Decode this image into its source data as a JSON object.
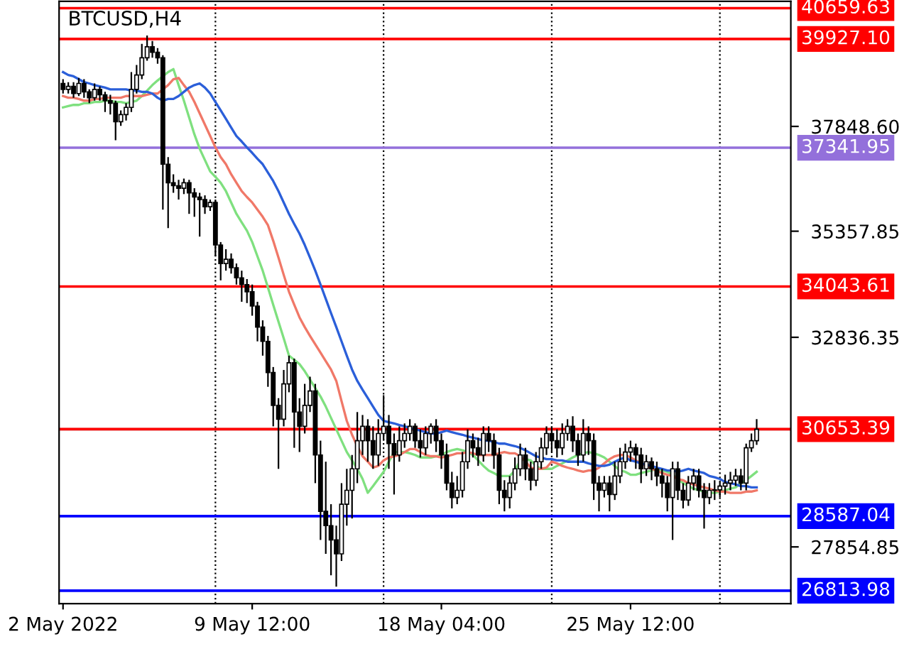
{
  "chart_data": {
    "type": "candlestick",
    "title": "BTCUSD,H4",
    "categories": [
      "2 May 2022",
      null,
      null,
      null,
      null,
      null,
      null,
      null,
      null,
      null,
      null,
      null,
      null,
      null,
      null,
      null,
      null,
      null,
      null,
      null,
      null,
      null,
      null,
      null,
      null,
      null,
      null,
      null,
      null,
      null,
      null,
      null,
      null,
      null,
      null,
      null,
      "9 May 12:00",
      null,
      null,
      null,
      null,
      null,
      null,
      null,
      null,
      null,
      null,
      null,
      null,
      null,
      null,
      null,
      null,
      null,
      null,
      null,
      null,
      null,
      null,
      null,
      null,
      null,
      null,
      null,
      null,
      null,
      null,
      null,
      null,
      null,
      null,
      null,
      "18 May 04:00",
      null,
      null,
      null,
      null,
      null,
      null,
      null,
      null,
      null,
      null,
      null,
      null,
      null,
      null,
      null,
      null,
      null,
      null,
      null,
      null,
      null,
      null,
      null,
      null,
      null,
      null,
      null,
      null,
      null,
      null,
      null,
      null,
      null,
      null,
      null,
      "25 May 12:00",
      null,
      null,
      null,
      null,
      null,
      null,
      null,
      null,
      null,
      null,
      null,
      null,
      null,
      null,
      null,
      null,
      null,
      null,
      null,
      null,
      null,
      null,
      null,
      null
    ],
    "ohlc": [
      [
        38870,
        38970,
        38630,
        38730
      ],
      [
        38730,
        38900,
        38630,
        38800
      ],
      [
        38800,
        38900,
        38530,
        38630
      ],
      [
        38630,
        39000,
        38570,
        38870
      ],
      [
        38870,
        38970,
        38530,
        38670
      ],
      [
        38670,
        38730,
        38400,
        38530
      ],
      [
        38530,
        38870,
        38460,
        38730
      ],
      [
        38730,
        38800,
        38460,
        38600
      ],
      [
        38600,
        38670,
        38190,
        38460
      ],
      [
        38460,
        38600,
        38130,
        38400
      ],
      [
        38400,
        38460,
        37520,
        37960
      ],
      [
        37960,
        38230,
        37860,
        38130
      ],
      [
        38130,
        38400,
        37990,
        38300
      ],
      [
        38300,
        39140,
        38190,
        38730
      ],
      [
        38730,
        39310,
        38630,
        39070
      ],
      [
        39070,
        39810,
        38970,
        39480
      ],
      [
        39480,
        40010,
        39410,
        39740
      ],
      [
        39740,
        39880,
        39480,
        39610
      ],
      [
        39610,
        39710,
        39340,
        39480
      ],
      [
        39480,
        39540,
        35870,
        36950
      ],
      [
        36950,
        37120,
        35430,
        36510
      ],
      [
        36510,
        36710,
        36270,
        36440
      ],
      [
        36440,
        36580,
        36110,
        36380
      ],
      [
        36380,
        36610,
        36240,
        36510
      ],
      [
        36510,
        36580,
        35770,
        36270
      ],
      [
        36270,
        36380,
        35700,
        36170
      ],
      [
        36170,
        36270,
        35230,
        36110
      ],
      [
        36110,
        36210,
        35770,
        35940
      ],
      [
        35940,
        36110,
        35840,
        36040
      ],
      [
        36040,
        36110,
        34760,
        35030
      ],
      [
        35030,
        35100,
        34190,
        34590
      ],
      [
        34590,
        34930,
        34420,
        34690
      ],
      [
        34690,
        34830,
        34350,
        34490
      ],
      [
        34490,
        34590,
        34090,
        34250
      ],
      [
        34250,
        34420,
        33680,
        34090
      ],
      [
        34090,
        34220,
        33650,
        33920
      ],
      [
        33920,
        34090,
        33350,
        33580
      ],
      [
        33580,
        33680,
        32740,
        33080
      ],
      [
        33080,
        33240,
        32400,
        32740
      ],
      [
        32740,
        32870,
        31660,
        32000
      ],
      [
        32000,
        32130,
        30720,
        31220
      ],
      [
        31220,
        31390,
        29710,
        30890
      ],
      [
        30890,
        32060,
        30720,
        31730
      ],
      [
        31730,
        32400,
        31530,
        32230
      ],
      [
        32230,
        32330,
        30210,
        31060
      ],
      [
        31060,
        31390,
        30110,
        30720
      ],
      [
        30720,
        31730,
        30550,
        31220
      ],
      [
        31220,
        31900,
        31060,
        31560
      ],
      [
        31560,
        31730,
        29370,
        30040
      ],
      [
        30040,
        30380,
        28020,
        28700
      ],
      [
        28700,
        29880,
        27690,
        28360
      ],
      [
        28360,
        28870,
        27180,
        28020
      ],
      [
        28020,
        28360,
        26910,
        27690
      ],
      [
        27690,
        29370,
        27520,
        28870
      ],
      [
        28870,
        29710,
        28360,
        29200
      ],
      [
        29200,
        30040,
        28530,
        29710
      ],
      [
        29710,
        31060,
        29370,
        30380
      ],
      [
        30380,
        30990,
        30040,
        30720
      ],
      [
        30720,
        30890,
        29880,
        30380
      ],
      [
        30380,
        30720,
        29710,
        30040
      ],
      [
        30040,
        30890,
        29780,
        30550
      ],
      [
        30550,
        31460,
        30380,
        30720
      ],
      [
        30720,
        30990,
        29710,
        30310
      ],
      [
        30310,
        30550,
        29100,
        30040
      ],
      [
        30040,
        30720,
        29880,
        30380
      ],
      [
        30380,
        30790,
        30210,
        30550
      ],
      [
        30550,
        30890,
        30380,
        30720
      ],
      [
        30720,
        30790,
        30210,
        30380
      ],
      [
        30380,
        30650,
        29980,
        30210
      ],
      [
        30210,
        30720,
        30040,
        30550
      ],
      [
        30550,
        30790,
        30310,
        30720
      ],
      [
        30720,
        30890,
        30110,
        30380
      ],
      [
        30380,
        30550,
        29710,
        30040
      ],
      [
        30040,
        30310,
        29200,
        29370
      ],
      [
        29370,
        29640,
        28770,
        29030
      ],
      [
        29030,
        29540,
        28870,
        29200
      ],
      [
        29200,
        30110,
        29030,
        29880
      ],
      [
        29880,
        30650,
        29710,
        30380
      ],
      [
        30380,
        30550,
        29980,
        30210
      ],
      [
        30210,
        30450,
        29780,
        30040
      ],
      [
        30040,
        30720,
        29880,
        30550
      ],
      [
        30550,
        30720,
        30110,
        30380
      ],
      [
        30380,
        30550,
        29710,
        30040
      ],
      [
        30040,
        30210,
        28870,
        29200
      ],
      [
        29200,
        29440,
        28700,
        29030
      ],
      [
        29030,
        29540,
        28770,
        29370
      ],
      [
        29370,
        29980,
        29200,
        29710
      ],
      [
        29710,
        30310,
        29540,
        30040
      ],
      [
        30040,
        30210,
        29440,
        29710
      ],
      [
        29710,
        29880,
        29200,
        29440
      ],
      [
        29440,
        30110,
        29300,
        29880
      ],
      [
        29880,
        30450,
        29710,
        30210
      ],
      [
        30210,
        30720,
        30040,
        30550
      ],
      [
        30550,
        30720,
        30110,
        30380
      ],
      [
        30380,
        30650,
        29980,
        30210
      ],
      [
        30210,
        30790,
        30040,
        30550
      ],
      [
        30550,
        30890,
        30380,
        30720
      ],
      [
        30720,
        30960,
        30110,
        30380
      ],
      [
        30380,
        30550,
        29780,
        30040
      ],
      [
        30040,
        30890,
        29880,
        30550
      ],
      [
        30550,
        30720,
        30040,
        30380
      ],
      [
        30380,
        30550,
        28970,
        29370
      ],
      [
        29370,
        29540,
        28700,
        29200
      ],
      [
        29200,
        29540,
        29030,
        29370
      ],
      [
        29370,
        29540,
        28700,
        29100
      ],
      [
        29100,
        29880,
        28970,
        29540
      ],
      [
        29540,
        30210,
        29370,
        29880
      ],
      [
        29880,
        30310,
        29710,
        30110
      ],
      [
        30110,
        30380,
        29880,
        30210
      ],
      [
        30210,
        30310,
        29710,
        30040
      ],
      [
        30040,
        30210,
        29370,
        29710
      ],
      [
        29710,
        30040,
        29540,
        29880
      ],
      [
        29880,
        29980,
        29440,
        29710
      ],
      [
        29710,
        29880,
        29300,
        29540
      ],
      [
        29540,
        29710,
        29030,
        29370
      ],
      [
        29370,
        29540,
        28700,
        29030
      ],
      [
        29030,
        29880,
        28020,
        29710
      ],
      [
        29710,
        29880,
        28970,
        29200
      ],
      [
        29200,
        29370,
        28770,
        28970
      ],
      [
        28970,
        29540,
        28830,
        29370
      ],
      [
        29370,
        29710,
        29200,
        29540
      ],
      [
        29540,
        29710,
        29030,
        29200
      ],
      [
        29200,
        29370,
        28290,
        29030
      ],
      [
        29030,
        29370,
        28870,
        29200
      ],
      [
        29200,
        29440,
        28970,
        29210
      ],
      [
        29210,
        29400,
        29030,
        29300
      ],
      [
        29300,
        29570,
        29100,
        29370
      ],
      [
        29370,
        29640,
        29200,
        29440
      ],
      [
        29440,
        29710,
        29300,
        29540
      ],
      [
        29540,
        29710,
        29200,
        29370
      ],
      [
        29370,
        30310,
        29200,
        30210
      ],
      [
        30210,
        30550,
        30110,
        30380
      ],
      [
        30380,
        30890,
        30280,
        30650
      ]
    ],
    "series": [
      {
        "type": "line",
        "color": "#7fe07f",
        "values": [
          38300,
          38330,
          38360,
          38360,
          38400,
          38400,
          38430,
          38430,
          38460,
          38460,
          38430,
          38430,
          38400,
          38430,
          38460,
          38570,
          38700,
          38830,
          38940,
          39040,
          39140,
          39210,
          38830,
          38460,
          38060,
          37660,
          37320,
          37050,
          36780,
          36650,
          36510,
          36310,
          36040,
          35770,
          35570,
          35370,
          35100,
          34760,
          34420,
          34020,
          33610,
          33210,
          32810,
          32400,
          32300,
          32200,
          32030,
          31830,
          31630,
          31430,
          31190,
          30920,
          30650,
          30380,
          30110,
          29910,
          29710,
          29470,
          29140,
          29300,
          29470,
          29640,
          29880,
          30110,
          30110,
          30110,
          30080,
          30040,
          29980,
          29980,
          29980,
          30010,
          30040,
          30110,
          30150,
          30180,
          30150,
          30110,
          30040,
          29910,
          29780,
          29670,
          29610,
          29540,
          29540,
          29540,
          29670,
          29910,
          29940,
          29910,
          29780,
          29710,
          29710,
          29710,
          29780,
          29840,
          29910,
          29980,
          30040,
          30080,
          30110,
          30080,
          30040,
          29980,
          29880,
          29780,
          29670,
          29640,
          29570,
          29570,
          29610,
          29640,
          29670,
          29710,
          29670,
          29640,
          29570,
          29470,
          29370,
          29300,
          29240,
          29200,
          29170,
          29140,
          29140,
          29170,
          29200,
          29240,
          29270,
          29370,
          29440,
          29540,
          29640
        ]
      },
      {
        "type": "line",
        "color": "#f07868",
        "values": [
          38570,
          38530,
          38530,
          38500,
          38460,
          38460,
          38500,
          38500,
          38530,
          38530,
          38530,
          38530,
          38570,
          38570,
          38570,
          38570,
          38600,
          38630,
          38630,
          38730,
          38830,
          38970,
          39000,
          38830,
          38670,
          38430,
          38160,
          37890,
          37620,
          37350,
          37120,
          36950,
          36710,
          36510,
          36310,
          36170,
          36040,
          35870,
          35700,
          35500,
          35130,
          34730,
          34320,
          33920,
          33610,
          33310,
          33080,
          32870,
          32670,
          32470,
          32270,
          32070,
          31800,
          31320,
          30850,
          30520,
          30250,
          30010,
          29880,
          29740,
          29780,
          29910,
          29980,
          30010,
          30040,
          30110,
          30180,
          30180,
          30110,
          30040,
          30010,
          30010,
          29980,
          30010,
          30040,
          30080,
          30080,
          30110,
          30080,
          30040,
          30040,
          30040,
          30040,
          30080,
          30110,
          30080,
          30080,
          30010,
          29880,
          29740,
          29710,
          29710,
          29740,
          29880,
          29840,
          29780,
          29740,
          29710,
          29670,
          29640,
          29670,
          29670,
          29740,
          29840,
          29940,
          30010,
          30040,
          30040,
          29980,
          29910,
          29840,
          29780,
          29710,
          29670,
          29610,
          29570,
          29540,
          29470,
          29440,
          29370,
          29340,
          29300,
          29270,
          29240,
          29200,
          29170,
          29170,
          29140,
          29140,
          29140,
          29170,
          29170,
          29200
        ]
      },
      {
        "type": "line",
        "color": "#2b5fd9",
        "values": [
          39140,
          39070,
          39040,
          38970,
          38900,
          38870,
          38830,
          38800,
          38770,
          38730,
          38730,
          38730,
          38730,
          38700,
          38700,
          38670,
          38670,
          38630,
          38530,
          38460,
          38500,
          38500,
          38570,
          38670,
          38770,
          38830,
          38870,
          38770,
          38630,
          38430,
          38230,
          38030,
          37820,
          37620,
          37490,
          37350,
          37220,
          37080,
          36950,
          36750,
          36550,
          36310,
          36040,
          35770,
          35530,
          35300,
          35030,
          34730,
          34420,
          34090,
          33750,
          33410,
          33080,
          32740,
          32400,
          32070,
          31800,
          31590,
          31390,
          31190,
          30990,
          30850,
          30820,
          30790,
          30750,
          30720,
          30680,
          30650,
          30620,
          30580,
          30550,
          30550,
          30580,
          30620,
          30580,
          30550,
          30520,
          30480,
          30450,
          30420,
          30380,
          30380,
          30350,
          30310,
          30310,
          30280,
          30250,
          30210,
          30150,
          30080,
          30010,
          29980,
          29940,
          29940,
          29910,
          29910,
          29880,
          29880,
          29880,
          29880,
          29840,
          29810,
          29780,
          29780,
          29810,
          29880,
          29940,
          29980,
          29910,
          29880,
          29840,
          29810,
          29780,
          29740,
          29710,
          29670,
          29670,
          29640,
          29670,
          29710,
          29670,
          29640,
          29610,
          29540,
          29510,
          29470,
          29400,
          29370,
          29340,
          29300,
          29300,
          29270,
          29270
        ]
      }
    ],
    "ylim": [
      26508,
      40822
    ],
    "yticks": [
      {
        "value": 37848.6,
        "label": "37848.60"
      },
      35357.85,
      32836.35,
      27854.85
    ],
    "ref_lines": [
      {
        "axis": "y",
        "value": 40659.63,
        "label": "40659.63",
        "color": "#ff0000"
      },
      {
        "axis": "y",
        "value": 39927.1,
        "label": "39927.10",
        "color": "#ff0000"
      },
      {
        "axis": "y",
        "value": 37341.95,
        "label": "37341.95",
        "color": "#9370db"
      },
      {
        "axis": "y",
        "value": 34043.61,
        "label": "34043.61",
        "color": "#ff0000"
      },
      {
        "axis": "y",
        "value": 30650,
        "color": "#c8c8c8"
      },
      {
        "axis": "y",
        "value": 30653.39,
        "label": "30653.39",
        "color": "#ff0000"
      },
      {
        "axis": "y",
        "value": 28587.04,
        "label": "28587.04",
        "color": "#0000ff"
      },
      {
        "axis": "y",
        "value": 26813.98,
        "label": "26813.98",
        "color": "#0000ff"
      }
    ],
    "grid": false,
    "legend": false
  }
}
